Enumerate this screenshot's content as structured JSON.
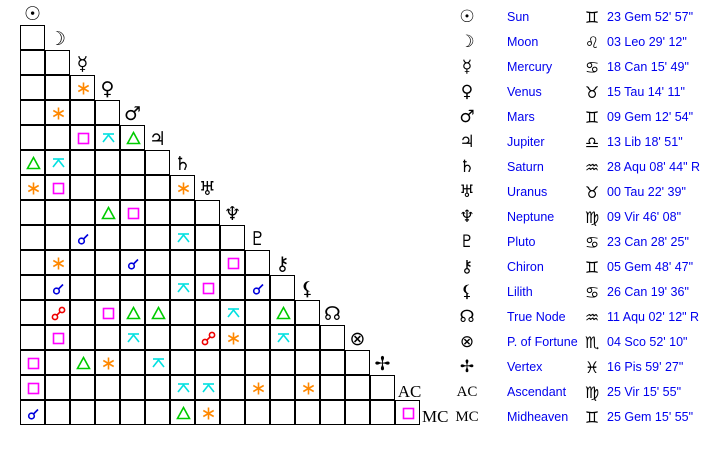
{
  "colors": {
    "conjunction": "#0000dd",
    "opposition": "#ee0000",
    "trine": "#00cc00",
    "square": "#ff00ff",
    "sextile": "#ff8800",
    "quincunx": "#00e0e0",
    "text": "#0000ee"
  },
  "planets": [
    {
      "name": "Sun",
      "symbol": "☉",
      "icon": "sun-icon",
      "sign_symbol": "♊",
      "sign_icon": "gemini-icon",
      "position": "23 Gem 52' 57\""
    },
    {
      "name": "Moon",
      "symbol": "☽",
      "icon": "moon-icon",
      "sign_symbol": "♌",
      "sign_icon": "leo-icon",
      "position": "03 Leo 29' 12\""
    },
    {
      "name": "Mercury",
      "symbol": "☿",
      "icon": "mercury-icon",
      "sign_symbol": "♋",
      "sign_icon": "cancer-icon",
      "position": "18 Can 15' 49\""
    },
    {
      "name": "Venus",
      "symbol": "♀",
      "icon": "venus-icon",
      "sign_symbol": "♉",
      "sign_icon": "taurus-icon",
      "position": "15 Tau 14' 11\""
    },
    {
      "name": "Mars",
      "symbol": "♂",
      "icon": "mars-icon",
      "sign_symbol": "♊",
      "sign_icon": "gemini-icon",
      "position": "09 Gem 12' 54\""
    },
    {
      "name": "Jupiter",
      "symbol": "♃",
      "icon": "jupiter-icon",
      "sign_symbol": "♎",
      "sign_icon": "libra-icon",
      "position": "13 Lib 18' 51\""
    },
    {
      "name": "Saturn",
      "symbol": "♄",
      "icon": "saturn-icon",
      "sign_symbol": "♒",
      "sign_icon": "aquarius-icon",
      "position": "28 Aqu 08' 44\" R"
    },
    {
      "name": "Uranus",
      "symbol": "♅",
      "icon": "uranus-icon",
      "sign_symbol": "♉",
      "sign_icon": "taurus-icon",
      "position": "00 Tau 22' 39\""
    },
    {
      "name": "Neptune",
      "symbol": "♆",
      "icon": "neptune-icon",
      "sign_symbol": "♍",
      "sign_icon": "virgo-icon",
      "position": "09 Vir 46' 08\""
    },
    {
      "name": "Pluto",
      "symbol": "♇",
      "icon": "pluto-icon",
      "sign_symbol": "♋",
      "sign_icon": "cancer-icon",
      "position": "23 Can 28' 25\""
    },
    {
      "name": "Chiron",
      "symbol": "⚷",
      "icon": "chiron-icon",
      "sign_symbol": "♊",
      "sign_icon": "gemini-icon",
      "position": "05 Gem 48' 47\""
    },
    {
      "name": "Lilith",
      "symbol": "⚸",
      "icon": "lilith-icon",
      "sign_symbol": "♋",
      "sign_icon": "cancer-icon",
      "position": "26 Can 19' 36\""
    },
    {
      "name": "True Node",
      "symbol": "☊",
      "icon": "north-node-icon",
      "sign_symbol": "♒",
      "sign_icon": "aquarius-icon",
      "position": "11 Aqu 02' 12\" R"
    },
    {
      "name": "P. of Fortune",
      "symbol": "⊗",
      "icon": "part-of-fortune-icon",
      "sign_symbol": "♏",
      "sign_icon": "scorpio-icon",
      "position": "04 Sco 52' 10\""
    },
    {
      "name": "Vertex",
      "symbol": "✢",
      "icon": "vertex-icon",
      "sign_symbol": "♓",
      "sign_icon": "pisces-icon",
      "position": "16 Pis 59' 27\""
    },
    {
      "name": "Ascendant",
      "symbol": "AC",
      "icon": "ascendant-icon",
      "sign_symbol": "♍",
      "sign_icon": "virgo-icon",
      "position": "25 Vir 15' 55\""
    },
    {
      "name": "Midheaven",
      "symbol": "MC",
      "icon": "midheaven-icon",
      "sign_symbol": "♊",
      "sign_icon": "gemini-icon",
      "position": "25 Gem 15' 55\""
    }
  ],
  "aspects": [
    {
      "row": 3,
      "col": 2,
      "type": "sextile"
    },
    {
      "row": 4,
      "col": 1,
      "type": "sextile"
    },
    {
      "row": 5,
      "col": 2,
      "type": "square"
    },
    {
      "row": 5,
      "col": 3,
      "type": "quincunx"
    },
    {
      "row": 5,
      "col": 4,
      "type": "trine"
    },
    {
      "row": 6,
      "col": 0,
      "type": "trine"
    },
    {
      "row": 6,
      "col": 1,
      "type": "quincunx"
    },
    {
      "row": 7,
      "col": 0,
      "type": "sextile"
    },
    {
      "row": 7,
      "col": 1,
      "type": "square"
    },
    {
      "row": 7,
      "col": 6,
      "type": "sextile"
    },
    {
      "row": 8,
      "col": 3,
      "type": "trine"
    },
    {
      "row": 8,
      "col": 4,
      "type": "square"
    },
    {
      "row": 9,
      "col": 2,
      "type": "conjunction"
    },
    {
      "row": 9,
      "col": 6,
      "type": "quincunx"
    },
    {
      "row": 10,
      "col": 1,
      "type": "sextile"
    },
    {
      "row": 10,
      "col": 4,
      "type": "conjunction"
    },
    {
      "row": 10,
      "col": 8,
      "type": "square"
    },
    {
      "row": 11,
      "col": 1,
      "type": "conjunction"
    },
    {
      "row": 11,
      "col": 6,
      "type": "quincunx"
    },
    {
      "row": 11,
      "col": 7,
      "type": "square"
    },
    {
      "row": 11,
      "col": 9,
      "type": "conjunction"
    },
    {
      "row": 12,
      "col": 1,
      "type": "opposition"
    },
    {
      "row": 12,
      "col": 3,
      "type": "square"
    },
    {
      "row": 12,
      "col": 4,
      "type": "trine"
    },
    {
      "row": 12,
      "col": 5,
      "type": "trine"
    },
    {
      "row": 12,
      "col": 8,
      "type": "quincunx"
    },
    {
      "row": 12,
      "col": 10,
      "type": "trine"
    },
    {
      "row": 13,
      "col": 1,
      "type": "square"
    },
    {
      "row": 13,
      "col": 4,
      "type": "quincunx"
    },
    {
      "row": 13,
      "col": 7,
      "type": "opposition"
    },
    {
      "row": 13,
      "col": 8,
      "type": "sextile"
    },
    {
      "row": 13,
      "col": 10,
      "type": "quincunx"
    },
    {
      "row": 14,
      "col": 0,
      "type": "square"
    },
    {
      "row": 14,
      "col": 2,
      "type": "trine"
    },
    {
      "row": 14,
      "col": 3,
      "type": "sextile"
    },
    {
      "row": 14,
      "col": 5,
      "type": "quincunx"
    },
    {
      "row": 15,
      "col": 0,
      "type": "square"
    },
    {
      "row": 15,
      "col": 6,
      "type": "quincunx"
    },
    {
      "row": 15,
      "col": 7,
      "type": "quincunx"
    },
    {
      "row": 15,
      "col": 9,
      "type": "sextile"
    },
    {
      "row": 15,
      "col": 11,
      "type": "sextile"
    },
    {
      "row": 16,
      "col": 0,
      "type": "conjunction"
    },
    {
      "row": 16,
      "col": 6,
      "type": "trine"
    },
    {
      "row": 16,
      "col": 7,
      "type": "sextile"
    },
    {
      "row": 16,
      "col": 15,
      "type": "square"
    }
  ]
}
